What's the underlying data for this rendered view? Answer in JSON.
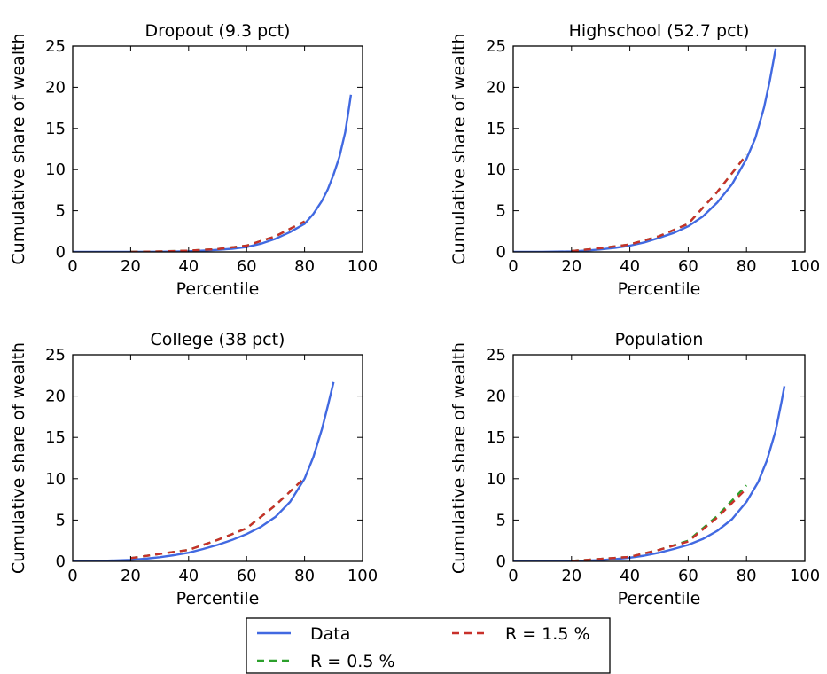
{
  "chart_data": [
    {
      "type": "line",
      "title": "Dropout (9.3 pct)",
      "xlabel": "Percentile",
      "ylabel": "Cumulative share of wealth",
      "xlim": [
        0,
        100
      ],
      "ylim": [
        0,
        25
      ],
      "xticks": [
        "0",
        "20",
        "40",
        "60",
        "80",
        "100"
      ],
      "yticks": [
        "0",
        "5",
        "10",
        "15",
        "20",
        "25"
      ],
      "series": [
        {
          "name": "Data",
          "color": "#4169E1",
          "style": "solid",
          "x": [
            0,
            10,
            20,
            30,
            40,
            45,
            50,
            55,
            60,
            65,
            70,
            75,
            80,
            83,
            86,
            88,
            90,
            92,
            94,
            95,
            96
          ],
          "y": [
            0,
            0,
            0,
            0.02,
            0.08,
            0.15,
            0.25,
            0.38,
            0.58,
            1.0,
            1.6,
            2.4,
            3.4,
            4.6,
            6.2,
            7.6,
            9.4,
            11.5,
            14.5,
            16.7,
            19.1
          ]
        },
        {
          "name": "R = 0.5 %",
          "color": "#2CA02C",
          "style": "dashed",
          "x": [
            20,
            30,
            40,
            50,
            60,
            70,
            80
          ],
          "y": [
            0,
            0.05,
            0.15,
            0.35,
            0.75,
            1.9,
            3.7
          ]
        },
        {
          "name": "R = 1.5 %",
          "color": "#C8302A",
          "style": "dashed",
          "x": [
            20,
            30,
            40,
            50,
            60,
            70,
            80
          ],
          "y": [
            0,
            0.05,
            0.15,
            0.35,
            0.75,
            1.9,
            3.7
          ]
        }
      ]
    },
    {
      "type": "line",
      "title": "Highschool (52.7 pct)",
      "xlabel": "Percentile",
      "ylabel": "Cumulative share of wealth",
      "xlim": [
        0,
        100
      ],
      "ylim": [
        0,
        25
      ],
      "xticks": [
        "0",
        "20",
        "40",
        "60",
        "80",
        "100"
      ],
      "yticks": [
        "0",
        "5",
        "10",
        "15",
        "20",
        "25"
      ],
      "series": [
        {
          "name": "Data",
          "color": "#4169E1",
          "style": "solid",
          "x": [
            0,
            10,
            20,
            25,
            30,
            35,
            40,
            45,
            50,
            55,
            60,
            65,
            70,
            75,
            80,
            83,
            86,
            88,
            90
          ],
          "y": [
            0,
            0,
            0.05,
            0.15,
            0.3,
            0.5,
            0.75,
            1.15,
            1.7,
            2.3,
            3.1,
            4.3,
            6.0,
            8.2,
            11.3,
            13.8,
            17.5,
            20.8,
            24.7
          ]
        },
        {
          "name": "R = 0.5 %",
          "color": "#2CA02C",
          "style": "dashed",
          "x": [
            20,
            30,
            40,
            50,
            60,
            70,
            80
          ],
          "y": [
            0.1,
            0.45,
            0.9,
            1.9,
            3.4,
            7.3,
            11.8
          ]
        },
        {
          "name": "R = 1.5 %",
          "color": "#C8302A",
          "style": "dashed",
          "x": [
            20,
            30,
            40,
            50,
            60,
            70,
            80
          ],
          "y": [
            0.1,
            0.45,
            0.9,
            1.9,
            3.4,
            7.3,
            11.8
          ]
        }
      ]
    },
    {
      "type": "line",
      "title": "College (38 pct)",
      "xlabel": "Percentile",
      "ylabel": "Cumulative share of wealth",
      "xlim": [
        0,
        100
      ],
      "ylim": [
        0,
        25
      ],
      "xticks": [
        "0",
        "20",
        "40",
        "60",
        "80",
        "100"
      ],
      "yticks": [
        "0",
        "5",
        "10",
        "15",
        "20",
        "25"
      ],
      "series": [
        {
          "name": "Data",
          "color": "#4169E1",
          "style": "solid",
          "x": [
            0,
            10,
            20,
            25,
            30,
            35,
            40,
            45,
            50,
            55,
            60,
            65,
            70,
            75,
            80,
            83,
            86,
            88,
            90
          ],
          "y": [
            0,
            0.05,
            0.18,
            0.32,
            0.5,
            0.75,
            1.05,
            1.5,
            2.0,
            2.6,
            3.3,
            4.2,
            5.4,
            7.2,
            10.0,
            12.6,
            16.0,
            18.8,
            21.7
          ]
        },
        {
          "name": "R = 0.5 %",
          "color": "#2CA02C",
          "style": "dashed",
          "x": [
            20,
            30,
            40,
            50,
            60,
            70,
            80
          ],
          "y": [
            0.4,
            0.9,
            1.4,
            2.6,
            4.0,
            6.8,
            10.1
          ]
        },
        {
          "name": "R = 1.5 %",
          "color": "#C8302A",
          "style": "dashed",
          "x": [
            20,
            30,
            40,
            50,
            60,
            70,
            80
          ],
          "y": [
            0.4,
            0.9,
            1.4,
            2.6,
            4.0,
            6.8,
            10.1
          ]
        }
      ]
    },
    {
      "type": "line",
      "title": "Population",
      "xlabel": "Percentile",
      "ylabel": "Cumulative share of wealth",
      "xlim": [
        0,
        100
      ],
      "ylim": [
        0,
        25
      ],
      "xticks": [
        "0",
        "20",
        "40",
        "60",
        "80",
        "100"
      ],
      "yticks": [
        "0",
        "5",
        "10",
        "15",
        "20",
        "25"
      ],
      "series": [
        {
          "name": "Data",
          "color": "#4169E1",
          "style": "solid",
          "x": [
            0,
            10,
            20,
            30,
            35,
            40,
            45,
            50,
            55,
            60,
            65,
            70,
            75,
            80,
            84,
            87,
            90,
            92,
            93
          ],
          "y": [
            0,
            0,
            0.03,
            0.15,
            0.28,
            0.45,
            0.7,
            1.05,
            1.5,
            2.0,
            2.7,
            3.7,
            5.1,
            7.2,
            9.6,
            12.2,
            15.8,
            19.3,
            21.2
          ]
        },
        {
          "name": "R = 0.5 %",
          "color": "#2CA02C",
          "style": "dashed",
          "x": [
            20,
            30,
            40,
            50,
            60,
            70,
            80
          ],
          "y": [
            0.05,
            0.3,
            0.55,
            1.4,
            2.5,
            5.5,
            9.2
          ]
        },
        {
          "name": "R = 1.5 %",
          "color": "#C8302A",
          "style": "dashed",
          "x": [
            20,
            30,
            40,
            50,
            60,
            70,
            80
          ],
          "y": [
            0.05,
            0.3,
            0.55,
            1.4,
            2.4,
            5.3,
            8.8
          ]
        }
      ]
    }
  ],
  "legend": {
    "placement": "bottom-center",
    "entries": [
      {
        "label": "Data",
        "color": "#4169E1",
        "style": "solid"
      },
      {
        "label": "R = 1.5 %",
        "color": "#C8302A",
        "style": "dashed"
      },
      {
        "label": "R = 0.5 %",
        "color": "#2CA02C",
        "style": "dashed"
      }
    ]
  }
}
